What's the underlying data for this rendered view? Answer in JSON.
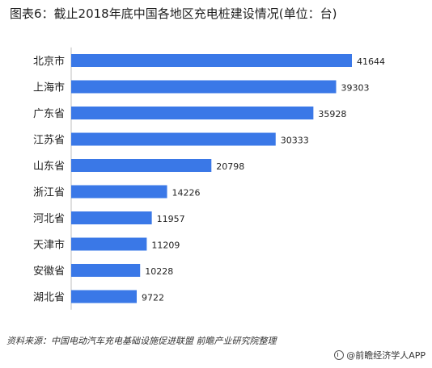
{
  "title": "图表6：截止2018年底中国各地区充电桩建设情况(单位：台)",
  "source": "资料来源：中国电动汽车充电基础设施促进联盟 前瞻产业研究院整理",
  "brand": "@前瞻经济学人APP",
  "colors": {
    "bar": "#3a78e7",
    "text": "#1f1f1f"
  },
  "chart_data": {
    "type": "bar",
    "orientation": "horizontal",
    "title": "图表6：截止2018年底中国各地区充电桩建设情况(单位：台)",
    "categories": [
      "北京市",
      "上海市",
      "广东省",
      "江苏省",
      "山东省",
      "浙江省",
      "河北省",
      "天津市",
      "安徽省",
      "湖北省"
    ],
    "values": [
      41644,
      39303,
      35928,
      30333,
      20798,
      14226,
      11957,
      11209,
      10228,
      9722
    ],
    "xlim": [
      0,
      45000
    ],
    "grid": false,
    "data_labels": true
  }
}
